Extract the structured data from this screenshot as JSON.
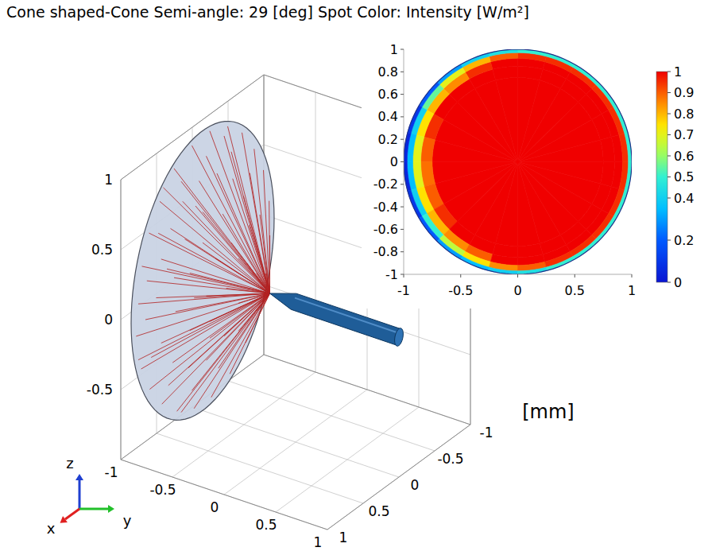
{
  "chart_data": [
    {
      "type": "rays",
      "title": "Cone shaped-Cone  Semi-angle: 29 [deg]  Spot Color: Intensity [W/m²]",
      "unit_label": "[mm]",
      "axis_labels": {
        "x": "x",
        "y": "y",
        "z": "z"
      },
      "xlim": [
        -1,
        1
      ],
      "ylim": [
        -1,
        1
      ],
      "zlim": [
        -1,
        1
      ],
      "xticks": [
        -1,
        -0.5,
        0,
        0.5,
        1
      ],
      "yticks": [
        -1,
        -0.5,
        0,
        0.5,
        1
      ],
      "zticks": [
        -0.5,
        0,
        0.5,
        1
      ],
      "grid": true,
      "color": "#b22222",
      "disc": {
        "y": -0.9,
        "radius": 1
      },
      "fiber": {
        "tip": [
          0,
          -0.25,
          0
        ],
        "end_y": 1,
        "radius": 0.06
      },
      "rays": {
        "x": [
          0.9,
          0.85,
          0.75,
          0.6,
          0.4,
          0.15,
          -0.1,
          -0.35,
          -0.55,
          -0.72,
          -0.85,
          -0.93,
          -0.94,
          -0.88,
          -0.76,
          -0.6,
          -0.38,
          -0.12,
          0.12,
          0.36,
          0.57,
          0.74,
          0.86,
          0.93,
          0.65,
          0.58,
          0.45,
          0.28,
          0.05,
          -0.2,
          -0.42,
          -0.57,
          -0.65,
          -0.62,
          -0.5,
          -0.3,
          -0.05,
          0.2,
          0.42,
          0.58,
          0.78,
          0.62,
          0.3,
          -0.05,
          -0.4,
          -0.66,
          -0.8,
          -0.75,
          -0.5,
          -0.22,
          0.15,
          0.48,
          0.72,
          0.8,
          0.4,
          0.25,
          0,
          -0.28,
          -0.4,
          -0.33,
          -0.1,
          0.18,
          0.38,
          0.18,
          0,
          -0.18,
          -0.05,
          0.12,
          0.5,
          -0.5,
          0.1,
          -0.1,
          0.9,
          -0.3,
          0.3,
          -0.82,
          0.55
        ],
        "z": [
          0.1,
          0.35,
          0.55,
          0.72,
          0.88,
          0.95,
          0.96,
          0.9,
          0.78,
          0.6,
          0.4,
          0.15,
          -0.1,
          -0.35,
          -0.57,
          -0.74,
          -0.88,
          -0.95,
          -0.94,
          -0.87,
          -0.74,
          -0.57,
          -0.38,
          -0.12,
          0.05,
          0.3,
          0.47,
          0.6,
          0.66,
          0.62,
          0.5,
          0.32,
          0.08,
          -0.18,
          -0.42,
          -0.58,
          -0.66,
          -0.62,
          -0.5,
          -0.3,
          0.22,
          0.5,
          0.75,
          0.8,
          0.7,
          0.45,
          0.1,
          -0.3,
          -0.62,
          -0.78,
          -0.8,
          -0.64,
          -0.35,
          -0.05,
          0.1,
          0.32,
          0.42,
          0.3,
          0.05,
          -0.25,
          -0.4,
          -0.36,
          -0.15,
          0.05,
          0.2,
          0.02,
          -0.2,
          -0.15,
          0.2,
          -0.1,
          0.5,
          -0.52,
          -0.3,
          0.85,
          -0.9,
          -0.5,
          0.8
        ]
      }
    },
    {
      "type": "heatmap",
      "xlim": [
        -1,
        1
      ],
      "ylim": [
        -1,
        1
      ],
      "xticks": [
        -1,
        -0.5,
        0,
        0.5,
        1
      ],
      "yticks": [
        1,
        0.8,
        0.6,
        0.4,
        0.2,
        0,
        -0.2,
        -0.4,
        -0.6,
        -0.8,
        -1
      ],
      "radius_edges": [
        0,
        0.75,
        0.85,
        0.92,
        0.97,
        1
      ],
      "angle_edges": [
        0,
        15,
        30,
        45,
        60,
        75,
        90,
        105,
        120,
        135,
        150,
        165,
        180,
        195,
        210,
        225,
        240,
        255,
        270,
        285,
        300,
        315,
        330,
        345,
        360
      ],
      "values": [
        [
          1,
          1,
          1,
          1,
          1,
          1,
          1,
          1,
          1,
          1,
          1,
          1,
          1,
          1,
          1,
          1,
          1,
          1,
          1,
          1,
          1,
          1,
          1,
          1
        ],
        [
          1,
          1,
          1,
          1,
          1,
          1,
          1,
          1,
          1,
          1,
          0.95,
          0.9,
          0.88,
          0.9,
          0.95,
          1,
          1,
          1,
          1,
          1,
          1,
          1,
          1,
          1
        ],
        [
          1,
          1,
          1,
          1,
          1,
          1,
          1,
          0.95,
          0.85,
          0.8,
          0.75,
          0.7,
          0.7,
          0.75,
          0.8,
          0.85,
          0.9,
          1,
          1,
          1,
          1,
          1,
          1,
          1
        ],
        [
          0.95,
          0.95,
          0.95,
          0.95,
          0.95,
          0.95,
          0.9,
          0.8,
          0.7,
          0.55,
          0.4,
          0.35,
          0.35,
          0.4,
          0.5,
          0.65,
          0.75,
          0.85,
          0.9,
          0.95,
          0.95,
          0.95,
          0.95,
          0.95
        ],
        [
          0.5,
          0.5,
          0.5,
          0.5,
          0.5,
          0.5,
          0.45,
          0.4,
          0.3,
          0.2,
          0.1,
          0.05,
          0.05,
          0.1,
          0.2,
          0.3,
          0.35,
          0.4,
          0.45,
          0.5,
          0.5,
          0.5,
          0.5,
          0.5
        ]
      ],
      "colorbar": {
        "range": [
          0,
          1
        ],
        "ticks": [
          0,
          0.2,
          0.4,
          0.5,
          0.6,
          0.7,
          0.8,
          0.9,
          1
        ]
      }
    }
  ]
}
